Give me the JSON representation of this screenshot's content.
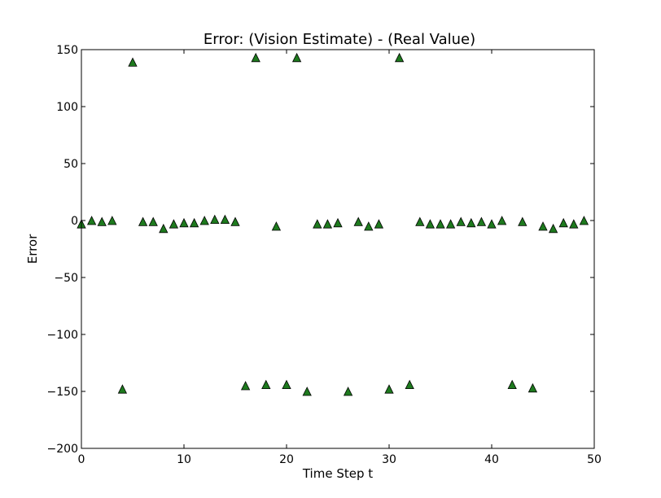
{
  "chart_data": {
    "type": "scatter",
    "title": "Error: (Vision Estimate) - (Real Value)",
    "xlabel": "Time Step t",
    "ylabel": "Error",
    "xlim": [
      0,
      50
    ],
    "ylim": [
      -200,
      150
    ],
    "xticks": [
      0,
      10,
      20,
      30,
      40,
      50
    ],
    "xtick_labels": [
      "0",
      "10",
      "20",
      "30",
      "40",
      "50"
    ],
    "yticks": [
      150,
      100,
      50,
      0,
      -50,
      -100,
      -150,
      -200
    ],
    "ytick_labels": [
      "150",
      "100",
      "50",
      "0",
      "−50",
      "−100",
      "−150",
      "−200"
    ],
    "grid": false,
    "marker": "triangle-up",
    "marker_color": "#1e7a1e",
    "marker_edge_color": "#000000",
    "series": [
      {
        "x": [
          0,
          1,
          2,
          3,
          4,
          5,
          6,
          7,
          8,
          9,
          10,
          11,
          12,
          13,
          14,
          15,
          16,
          17,
          18,
          19,
          20,
          21,
          22,
          23,
          24,
          25,
          26,
          27,
          28,
          29,
          30,
          31,
          32,
          33,
          34,
          35,
          36,
          37,
          38,
          39,
          40,
          41,
          42,
          43,
          44,
          45,
          46,
          47,
          48,
          49
        ],
        "values": [
          -3,
          0,
          -1,
          0,
          -148,
          139,
          -1,
          -1,
          -7,
          -3,
          -2,
          -2,
          0,
          1,
          1,
          -1,
          -145,
          143,
          -144,
          -5,
          -144,
          143,
          -150,
          -3,
          -3,
          -2,
          -150,
          -1,
          -5,
          -3,
          -148,
          143,
          -144,
          -1,
          -3,
          -3,
          -3,
          -1,
          -2,
          -1,
          -3,
          0,
          -144,
          -1,
          -147,
          -5,
          -7,
          -2,
          -3,
          0
        ]
      }
    ]
  }
}
